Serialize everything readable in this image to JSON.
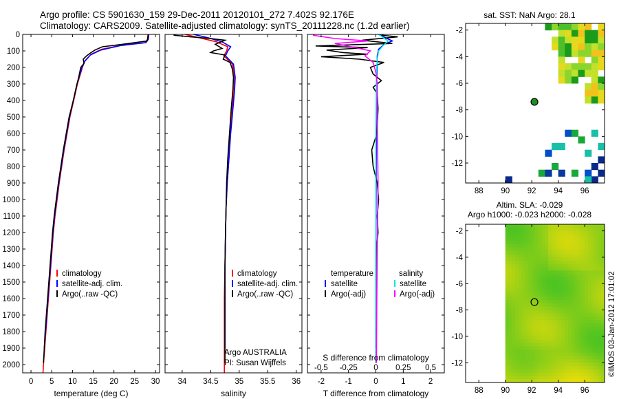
{
  "header": {
    "line1": "Argo profile: CS 5901630_159 29-Dec-2011 20120101_272 7.402S 92.176E",
    "line2": "Climatology: CARS2009. Satellite-adjusted climatology: synTS_20111228.nc (1.2d earlier)"
  },
  "colors": {
    "climatology": "#ff0000",
    "satellite": "#0000ff",
    "argo": "#000000",
    "satellite_salinity": "#00e5e5",
    "argo_salinity": "#ff00ff"
  },
  "chart_data": [
    {
      "type": "line",
      "id": "temperature",
      "xlabel": "temperature (deg C)",
      "xlim": [
        -2,
        31
      ],
      "ylim": [
        2050,
        0
      ],
      "xticks": [
        0,
        5,
        10,
        15,
        20,
        25,
        30
      ],
      "yticks": [
        0,
        100,
        200,
        300,
        400,
        500,
        600,
        700,
        800,
        900,
        1000,
        1100,
        1200,
        1300,
        1400,
        1500,
        1600,
        1700,
        1800,
        1900,
        2000
      ],
      "legend": [
        "climatology",
        "satellite-adj. clim.",
        "Argo(..raw -QC)"
      ],
      "series": [
        {
          "key": "climatology",
          "color": "#ff0000",
          "points": [
            [
              28.2,
              0
            ],
            [
              28.1,
              30
            ],
            [
              27.5,
              50
            ],
            [
              22,
              65
            ],
            [
              17,
              90
            ],
            [
              14.5,
              120
            ],
            [
              13,
              160
            ],
            [
              12.4,
              200
            ],
            [
              11.8,
              250
            ],
            [
              11.2,
              300
            ],
            [
              10.3,
              400
            ],
            [
              9.4,
              500
            ],
            [
              8.7,
              600
            ],
            [
              8,
              700
            ],
            [
              7.4,
              800
            ],
            [
              6.8,
              900
            ],
            [
              6.3,
              1000
            ],
            [
              5.8,
              1100
            ],
            [
              5.4,
              1200
            ],
            [
              5.1,
              1300
            ],
            [
              4.8,
              1400
            ],
            [
              4.5,
              1500
            ],
            [
              4.2,
              1600
            ],
            [
              3.9,
              1700
            ],
            [
              3.6,
              1800
            ],
            [
              3.3,
              1900
            ],
            [
              3.0,
              2000
            ],
            [
              2.9,
              2050
            ]
          ]
        },
        {
          "key": "satellite",
          "color": "#0000ff",
          "points": [
            [
              28.4,
              0
            ],
            [
              28.3,
              30
            ],
            [
              27.7,
              50
            ],
            [
              21.5,
              68
            ],
            [
              16.8,
              95
            ],
            [
              14.3,
              125
            ],
            [
              12.9,
              165
            ],
            [
              12.3,
              200
            ],
            [
              11.7,
              250
            ],
            [
              11.1,
              300
            ],
            [
              10.2,
              400
            ],
            [
              9.3,
              500
            ],
            [
              8.6,
              600
            ],
            [
              7.9,
              700
            ],
            [
              7.3,
              800
            ],
            [
              6.7,
              900
            ],
            [
              6.2,
              1000
            ],
            [
              5.7,
              1100
            ],
            [
              5.3,
              1200
            ],
            [
              5.0,
              1300
            ],
            [
              4.7,
              1400
            ],
            [
              4.4,
              1500
            ],
            [
              4.1,
              1600
            ],
            [
              3.8,
              1700
            ],
            [
              3.5,
              1800
            ],
            [
              3.2,
              1900
            ]
          ]
        },
        {
          "key": "argo",
          "color": "#000000",
          "points": [
            [
              28.3,
              5
            ],
            [
              28.0,
              40
            ],
            [
              22,
              60
            ],
            [
              17.2,
              75
            ],
            [
              15.4,
              95
            ],
            [
              14.2,
              115
            ],
            [
              13.4,
              130
            ],
            [
              12.6,
              150
            ],
            [
              12.8,
              175
            ],
            [
              12,
              200
            ],
            [
              11.5,
              260
            ],
            [
              11.0,
              310
            ],
            [
              10.2,
              400
            ],
            [
              9.2,
              500
            ],
            [
              8.5,
              600
            ],
            [
              7.8,
              700
            ],
            [
              7.2,
              800
            ],
            [
              6.6,
              900
            ],
            [
              6.1,
              1000
            ],
            [
              5.6,
              1100
            ],
            [
              5.2,
              1200
            ],
            [
              4.9,
              1300
            ],
            [
              4.6,
              1400
            ],
            [
              4.3,
              1500
            ],
            [
              4.0,
              1600
            ],
            [
              3.7,
              1700
            ],
            [
              3.4,
              1800
            ],
            [
              3.2,
              1900
            ],
            [
              3.0,
              1990
            ]
          ]
        }
      ]
    },
    {
      "type": "line",
      "id": "salinity",
      "xlabel": "salinity",
      "xlim": [
        33.7,
        36.1
      ],
      "ylim": [
        2050,
        0
      ],
      "xticks": [
        34,
        34.5,
        35,
        35.5,
        36
      ],
      "legend": [
        "climatology",
        "satellite-adj. clim.",
        "Argo(..raw -QC)"
      ],
      "annotation": [
        "Argo AUSTRALIA",
        "PI: Susan Wijffels"
      ],
      "series": [
        {
          "key": "climatology",
          "color": "#ff0000",
          "points": [
            [
              34.05,
              0
            ],
            [
              34.3,
              20
            ],
            [
              34.6,
              45
            ],
            [
              34.8,
              75
            ],
            [
              34.78,
              100
            ],
            [
              34.73,
              130
            ],
            [
              34.88,
              180
            ],
            [
              34.92,
              260
            ],
            [
              34.91,
              330
            ],
            [
              34.88,
              450
            ],
            [
              34.84,
              600
            ],
            [
              34.82,
              750
            ],
            [
              34.79,
              900
            ],
            [
              34.77,
              1050
            ],
            [
              34.76,
              1200
            ],
            [
              34.75,
              1400
            ],
            [
              34.74,
              1600
            ],
            [
              34.74,
              1800
            ],
            [
              34.74,
              2050
            ]
          ]
        },
        {
          "key": "satellite",
          "color": "#0000ff",
          "points": [
            [
              34.2,
              0
            ],
            [
              34.45,
              20
            ],
            [
              34.7,
              45
            ],
            [
              34.85,
              75
            ],
            [
              34.8,
              100
            ],
            [
              34.76,
              130
            ],
            [
              34.9,
              180
            ],
            [
              34.93,
              260
            ],
            [
              34.92,
              330
            ],
            [
              34.89,
              450
            ],
            [
              34.85,
              600
            ],
            [
              34.82,
              750
            ],
            [
              34.79,
              900
            ],
            [
              34.77,
              1050
            ],
            [
              34.76,
              1200
            ],
            [
              34.75,
              1400
            ],
            [
              34.75,
              1600
            ],
            [
              34.75,
              1800
            ],
            [
              34.75,
              1900
            ]
          ]
        },
        {
          "key": "argo",
          "color": "#000000",
          "points": [
            [
              33.85,
              5
            ],
            [
              34.15,
              15
            ],
            [
              34.5,
              25
            ],
            [
              34.75,
              35
            ],
            [
              34.58,
              60
            ],
            [
              34.7,
              85
            ],
            [
              34.55,
              100
            ],
            [
              34.5,
              110
            ],
            [
              34.75,
              125
            ],
            [
              34.72,
              150
            ],
            [
              34.84,
              170
            ],
            [
              34.88,
              210
            ],
            [
              34.9,
              260
            ],
            [
              34.89,
              330
            ],
            [
              34.86,
              450
            ],
            [
              34.83,
              600
            ],
            [
              34.8,
              750
            ],
            [
              34.78,
              900
            ],
            [
              34.77,
              1050
            ],
            [
              34.76,
              1200
            ],
            [
              34.75,
              1400
            ],
            [
              34.75,
              1600
            ],
            [
              34.75,
              1800
            ],
            [
              34.75,
              1990
            ]
          ]
        }
      ]
    },
    {
      "type": "line",
      "id": "difference",
      "xlabel_top": "S difference from climatology",
      "xlabel": "T difference from climatology",
      "xlim": [
        -2.5,
        2.5
      ],
      "ylim": [
        2050,
        0
      ],
      "xticks": [
        -2,
        -1,
        0,
        1,
        2
      ],
      "sticks": [
        -0.5,
        -0.25,
        0,
        0.25,
        0.5
      ],
      "s_scale": 4,
      "legend_left": [
        "temperature",
        "satellite",
        "Argo(-adj)"
      ],
      "legend_right": [
        "salinity",
        "satellite",
        "Argo(-adj)"
      ],
      "series": [
        {
          "key": "satellite",
          "color": "#0000ff",
          "points": [
            [
              0.1,
              0
            ],
            [
              0.6,
              40
            ],
            [
              0.3,
              60
            ],
            [
              0.1,
              90
            ],
            [
              0.05,
              130
            ],
            [
              0.05,
              200
            ],
            [
              0.02,
              300
            ],
            [
              0.02,
              600
            ],
            [
              0.01,
              1000
            ],
            [
              0,
              1400
            ],
            [
              0,
              1900
            ]
          ]
        },
        {
          "key": "argo",
          "color": "#000000",
          "points": [
            [
              0.2,
              5
            ],
            [
              0.8,
              15
            ],
            [
              -0.5,
              35
            ],
            [
              0.6,
              55
            ],
            [
              -2.2,
              70
            ],
            [
              -0.3,
              80
            ],
            [
              -1.8,
              95
            ],
            [
              -1.2,
              110
            ],
            [
              -0.3,
              120
            ],
            [
              -2.0,
              135
            ],
            [
              -0.6,
              150
            ],
            [
              0.3,
              170
            ],
            [
              -0.2,
              200
            ],
            [
              -0.1,
              240
            ],
            [
              0.2,
              280
            ],
            [
              -0.1,
              320
            ],
            [
              0.05,
              360
            ],
            [
              0.08,
              450
            ],
            [
              0.05,
              550
            ],
            [
              0,
              620
            ],
            [
              -0.15,
              700
            ],
            [
              -0.1,
              800
            ],
            [
              0.05,
              900
            ],
            [
              0.1,
              1000
            ],
            [
              0.05,
              1100
            ],
            [
              0.08,
              1200
            ],
            [
              0.02,
              1300
            ],
            [
              0.02,
              1500
            ],
            [
              0.02,
              1700
            ],
            [
              0,
              1990
            ]
          ]
        },
        {
          "key": "satellite_salinity",
          "color": "#00e5e5",
          "points": [
            [
              0.1,
              0
            ],
            [
              0.45,
              40
            ],
            [
              0.25,
              70
            ],
            [
              0.1,
              100
            ],
            [
              0.05,
              150
            ],
            [
              0.02,
              250
            ],
            [
              0.01,
              400
            ],
            [
              0,
              600
            ],
            [
              0,
              1000
            ],
            [
              0,
              1500
            ],
            [
              0,
              1990
            ]
          ]
        },
        {
          "key": "argo_salinity",
          "color": "#ff00ff",
          "points": [
            [
              -2.3,
              5
            ],
            [
              -1.5,
              25
            ],
            [
              -0.3,
              40
            ],
            [
              -1.5,
              55
            ],
            [
              -0.9,
              75
            ],
            [
              -0.2,
              100
            ],
            [
              -0.4,
              130
            ],
            [
              -0.1,
              170
            ],
            [
              0,
              230
            ],
            [
              0.05,
              300
            ],
            [
              0.05,
              500
            ],
            [
              0.08,
              900
            ],
            [
              0.05,
              1300
            ],
            [
              0.03,
              1700
            ],
            [
              0.02,
              1990
            ]
          ]
        }
      ]
    },
    {
      "type": "heatmap",
      "id": "sst_map",
      "title": "sat. SST: NaN Argo: 28.1",
      "xlim": [
        87,
        97.5
      ],
      "ylim": [
        -13.5,
        -1.5
      ],
      "xticks": [
        88,
        90,
        92,
        94,
        96
      ],
      "yticks": [
        -2,
        -4,
        -6,
        -8,
        -10,
        -12
      ],
      "marker": [
        92.2,
        -7.4
      ]
    },
    {
      "type": "heatmap",
      "id": "sla_map",
      "title_line1": "Altim. SLA: -0.029",
      "title_line2": "Argo h1000: -0.023 h2000: -0.028",
      "xlim": [
        87,
        97.5
      ],
      "ylim": [
        -13.5,
        -1.5
      ],
      "xticks": [
        88,
        90,
        92,
        94,
        96
      ],
      "yticks": [
        -2,
        -4,
        -6,
        -8,
        -10,
        -12
      ],
      "marker": [
        92.2,
        -7.4
      ]
    }
  ],
  "footer": {
    "stamp": "©IMOS 03-Jan-2012 17:01:02"
  }
}
